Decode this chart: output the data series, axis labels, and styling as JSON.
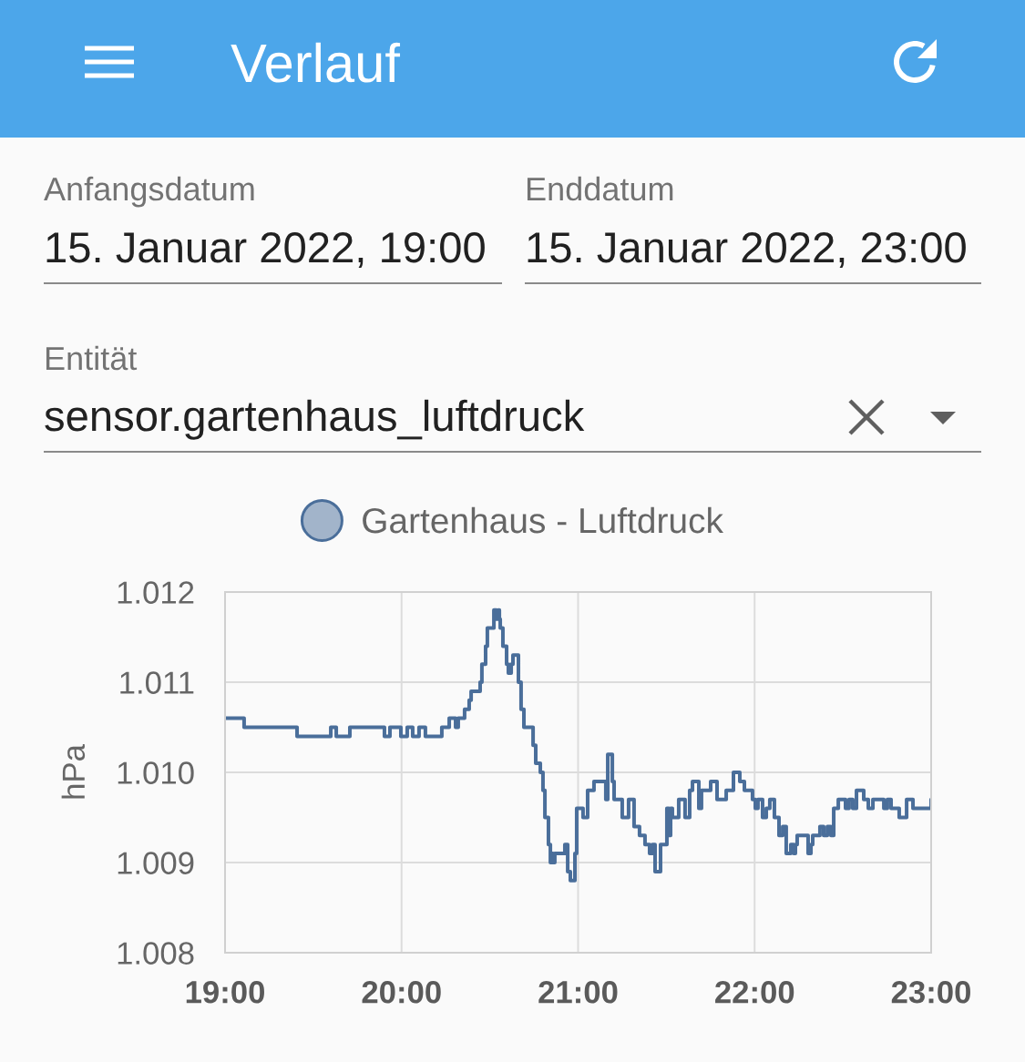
{
  "chart_data": {
    "type": "step",
    "title": "Verlauf",
    "ylabel": "hPa",
    "annotations": [
      "Anfangsdatum",
      "15. Januar 2022, 19:00",
      "Enddatum",
      "15. Januar 2022, 23:00",
      "Entität",
      "sensor.gartenhaus_luftdruck"
    ],
    "legend": "top",
    "grid": true,
    "line_style": "solid",
    "xlim": [
      19,
      23
    ],
    "xticks": [
      {
        "value": 19,
        "label": "19:00"
      },
      {
        "value": 20,
        "label": "20:00"
      },
      {
        "value": 21,
        "label": "21:00"
      },
      {
        "value": 22,
        "label": "22:00"
      },
      {
        "value": 23,
        "label": "23:00"
      }
    ],
    "ylim": [
      1008,
      1012
    ],
    "yticks": [
      {
        "value": 1008,
        "label": "1.008"
      },
      {
        "value": 1009,
        "label": "1.009"
      },
      {
        "value": 1010,
        "label": "1.010"
      },
      {
        "value": 1011,
        "label": "1.011"
      },
      {
        "value": 1012,
        "label": "1.012"
      }
    ],
    "series": [
      {
        "name": "Gartenhaus - Luftdruck",
        "color": "#4a6e9a",
        "x": [
          19.0,
          19.108,
          19.408,
          19.599,
          19.63,
          19.707,
          19.903,
          19.934,
          19.996,
          20.032,
          20.063,
          20.099,
          20.135,
          20.228,
          20.27,
          20.306,
          20.321,
          20.357,
          20.383,
          20.394,
          20.445,
          20.455,
          20.476,
          20.486,
          20.523,
          20.538,
          20.548,
          20.554,
          20.559,
          20.574,
          20.595,
          20.605,
          20.621,
          20.631,
          20.662,
          20.677,
          20.693,
          20.745,
          20.76,
          20.786,
          20.801,
          20.812,
          20.832,
          20.843,
          20.853,
          20.858,
          20.868,
          20.925,
          20.941,
          20.956,
          20.982,
          20.992,
          21.028,
          21.054,
          21.09,
          21.157,
          21.168,
          21.194,
          21.204,
          21.25,
          21.286,
          21.317,
          21.348,
          21.379,
          21.405,
          21.421,
          21.436,
          21.467,
          21.503,
          21.514,
          21.524,
          21.534,
          21.57,
          21.606,
          21.632,
          21.648,
          21.684,
          21.699,
          21.751,
          21.787,
          21.839,
          21.88,
          21.916,
          21.942,
          21.988,
          22.004,
          22.019,
          22.045,
          22.066,
          22.086,
          22.112,
          22.138,
          22.159,
          22.179,
          22.205,
          22.221,
          22.231,
          22.241,
          22.303,
          22.319,
          22.329,
          22.37,
          22.391,
          22.412,
          22.432,
          22.448,
          22.474,
          22.515,
          22.535,
          22.556,
          22.577,
          22.618,
          22.644,
          22.67,
          22.732,
          22.752,
          22.773,
          22.819,
          22.861,
          22.897,
          23.0
        ],
        "values": [
          1010.6,
          1010.5,
          1010.4,
          1010.5,
          1010.4,
          1010.5,
          1010.4,
          1010.5,
          1010.4,
          1010.5,
          1010.4,
          1010.5,
          1010.4,
          1010.5,
          1010.6,
          1010.5,
          1010.6,
          1010.7,
          1010.8,
          1010.9,
          1011.0,
          1011.2,
          1011.4,
          1011.6,
          1011.8,
          1011.7,
          1011.8,
          1011.7,
          1011.6,
          1011.4,
          1011.2,
          1011.1,
          1011.2,
          1011.3,
          1011.0,
          1010.7,
          1010.5,
          1010.3,
          1010.1,
          1010.0,
          1009.8,
          1009.5,
          1009.2,
          1009.0,
          1009.1,
          1009.0,
          1009.1,
          1009.2,
          1008.9,
          1008.8,
          1009.1,
          1009.6,
          1009.5,
          1009.8,
          1009.9,
          1009.7,
          1010.2,
          1009.9,
          1009.7,
          1009.5,
          1009.7,
          1009.4,
          1009.3,
          1009.2,
          1009.1,
          1009.2,
          1008.9,
          1009.2,
          1009.6,
          1009.3,
          1009.6,
          1009.5,
          1009.7,
          1009.5,
          1009.8,
          1009.9,
          1009.6,
          1009.8,
          1009.9,
          1009.7,
          1009.8,
          1010.0,
          1009.9,
          1009.8,
          1009.7,
          1009.6,
          1009.7,
          1009.5,
          1009.6,
          1009.7,
          1009.5,
          1009.3,
          1009.4,
          1009.1,
          1009.2,
          1009.1,
          1009.2,
          1009.3,
          1009.1,
          1009.2,
          1009.3,
          1009.4,
          1009.3,
          1009.4,
          1009.3,
          1009.6,
          1009.7,
          1009.6,
          1009.7,
          1009.6,
          1009.8,
          1009.7,
          1009.6,
          1009.7,
          1009.6,
          1009.7,
          1009.6,
          1009.5,
          1009.7,
          1009.6,
          1009.7
        ]
      }
    ]
  }
}
